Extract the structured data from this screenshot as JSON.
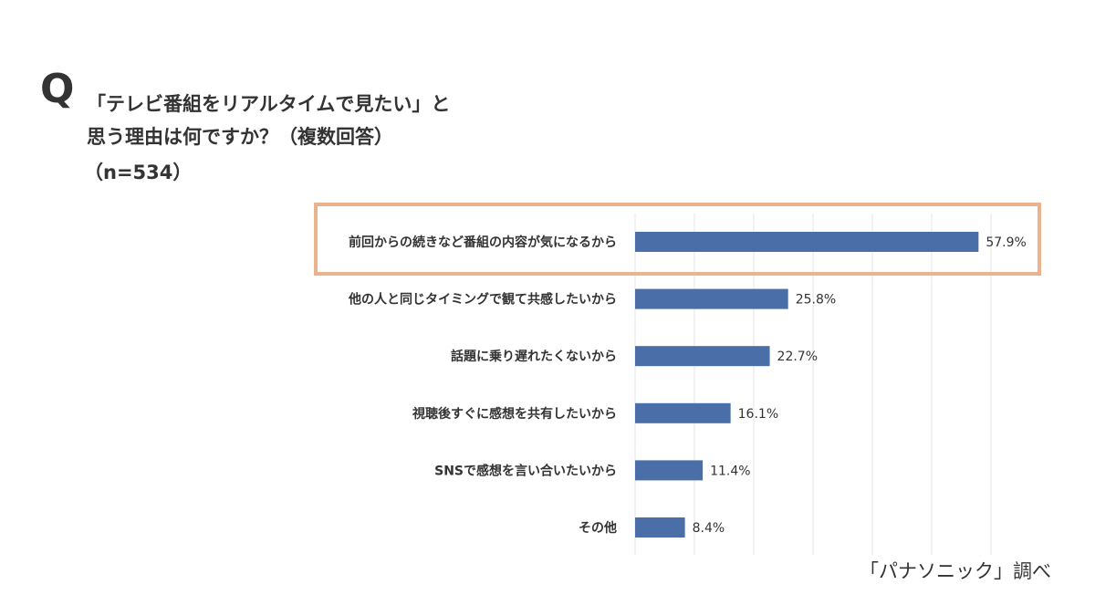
{
  "question": {
    "q_mark": "Q",
    "line1": "「テレビ番組をリアルタイムで見たい」と",
    "line2": "思う理由は何ですか？（複数回答）",
    "sample": "（n=534）"
  },
  "source": "「パナソニック」調べ",
  "colors": {
    "bar": "#4a6ea8",
    "highlight_border": "#e9b38e",
    "grid": "#e6e6e6",
    "text": "#333333"
  },
  "chart_data": {
    "type": "bar",
    "orientation": "horizontal",
    "categories": [
      "前回からの続きなど番組の内容が気になるから",
      "他の人と同じタイミングで観て共感したいから",
      "話題に乗り遅れたくないから",
      "視聴後すぐに感想を共有したいから",
      "SNSで感想を言い合いたいから",
      "その他"
    ],
    "values": [
      57.9,
      25.8,
      22.7,
      16.1,
      11.4,
      8.4
    ],
    "value_labels": [
      "57.9%",
      "25.8%",
      "22.7%",
      "16.1%",
      "11.4%",
      "8.4%"
    ],
    "xlim": [
      0,
      60
    ],
    "grid": true,
    "highlighted_index": 0
  }
}
